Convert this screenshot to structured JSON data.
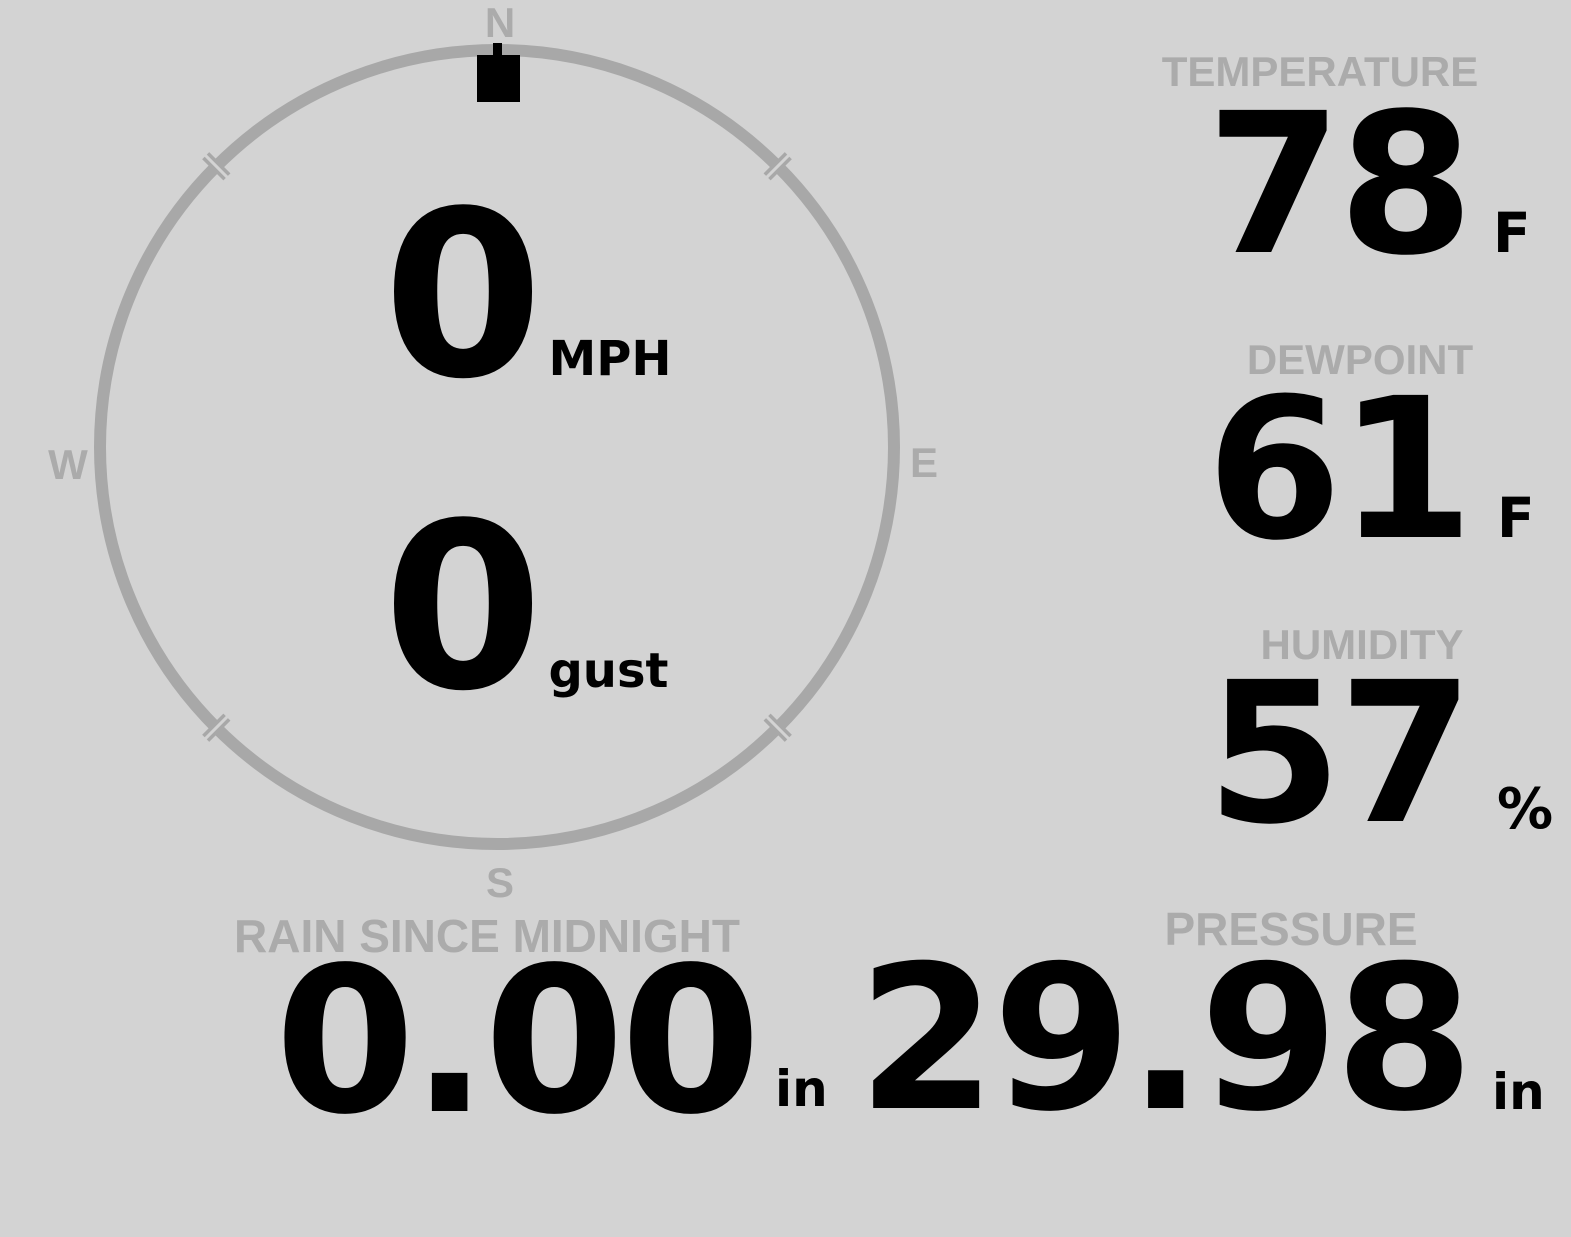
{
  "theme": {
    "background": "#d3d3d3",
    "ring": "#a8a8a8",
    "muted": "#ababab",
    "text": "#000000"
  },
  "wind": {
    "direction_deg": 0,
    "compass": {
      "north": "N",
      "east": "E",
      "south": "S",
      "west": "W"
    },
    "speed": {
      "value": "0",
      "unit": "MPH"
    },
    "gust": {
      "value": "0",
      "unit": "gust"
    }
  },
  "metrics": {
    "temperature": {
      "label": "TEMPERATURE",
      "value": "78",
      "unit": "F"
    },
    "dewpoint": {
      "label": "DEWPOINT",
      "value": "61",
      "unit": "F"
    },
    "humidity": {
      "label": "HUMIDITY",
      "value": "57",
      "unit": "%"
    },
    "rain": {
      "label": "RAIN SINCE MIDNIGHT",
      "value": "0.00",
      "unit": "in"
    },
    "pressure": {
      "label": "PRESSURE",
      "value": "29.98",
      "unit": "in"
    }
  }
}
